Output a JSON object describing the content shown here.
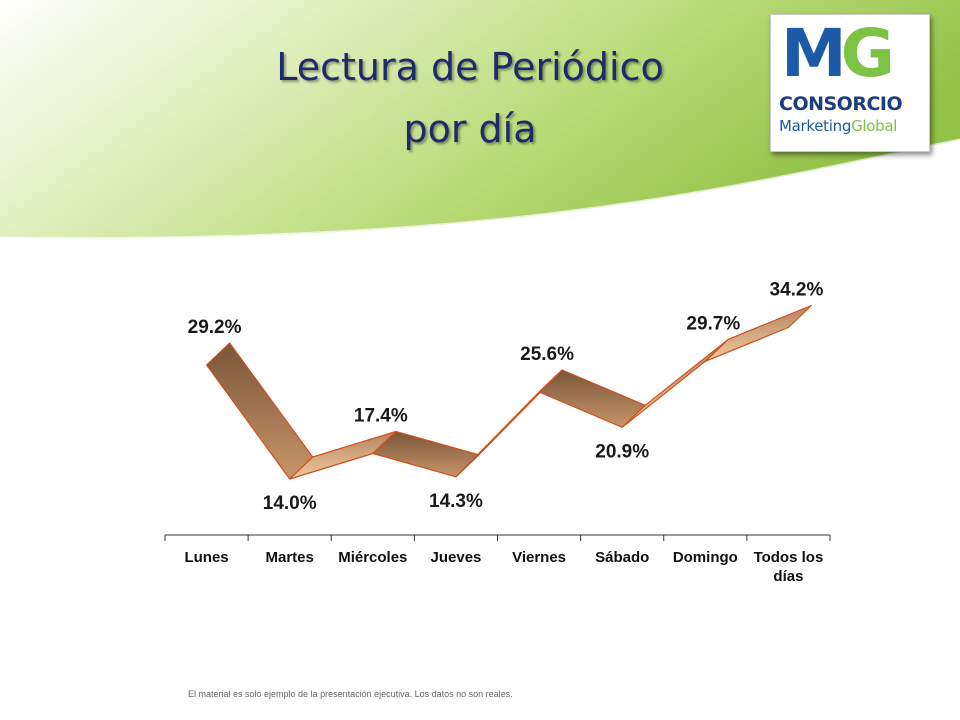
{
  "slide": {
    "title_line1": "Lectura de Periódico",
    "title_line2": "por día",
    "footnote": "El material es solo ejemplo de la presentación ejecutiva.  Los datos no son reales.",
    "colors": {
      "title": "#1e2a6e",
      "band_top": "#9fc84c",
      "band_light": "#eef6d6"
    }
  },
  "logo": {
    "mark_m": "M",
    "mark_g": "G",
    "line1": "CONSORCIO",
    "line2a": "Marketing",
    "line2b": "Global",
    "colors": {
      "blue": "#1c5aa8",
      "green": "#7cc243"
    }
  },
  "chart_data": {
    "type": "line",
    "style": "3d-ribbon",
    "title": "",
    "xlabel": "",
    "ylabel": "",
    "categories": [
      "Lunes",
      "Martes",
      "Miércoles",
      "Jueves",
      "Viernes",
      "Sábado",
      "Domingo",
      "Todos los días"
    ],
    "values": [
      29.2,
      14.0,
      17.4,
      14.3,
      25.6,
      20.9,
      29.7,
      34.2
    ],
    "data_labels": [
      "29.2%",
      "14.0%",
      "17.4%",
      "14.3%",
      "25.6%",
      "20.9%",
      "29.7%",
      "34.2%"
    ],
    "unit": "%",
    "legend": "none",
    "grid": false,
    "colors": {
      "ribbon_dark": "#7a5538",
      "ribbon_light": "#f0c8a0",
      "edge": "#d0501c"
    }
  }
}
